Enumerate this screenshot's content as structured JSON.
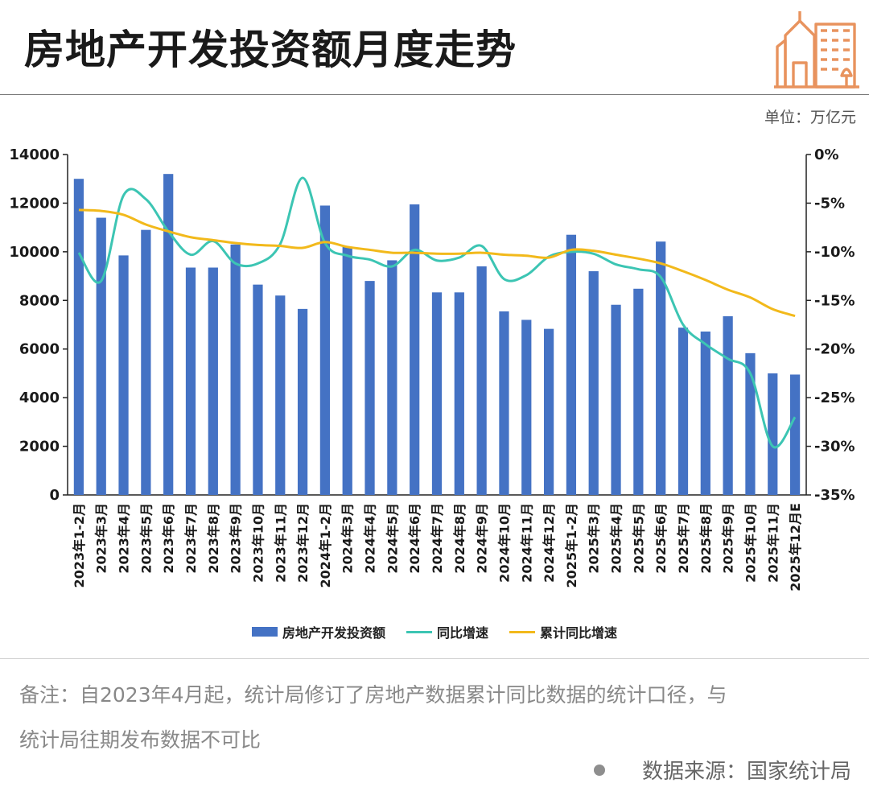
{
  "header": {
    "title": "房地产开发投资额月度走势",
    "unit": "单位：万亿元"
  },
  "logo": {
    "icon": "city-buildings-icon",
    "color": "#e8935e"
  },
  "colors": {
    "bar": "#4472c4",
    "yoy": "#3cc5b3",
    "cum": "#f2b91b",
    "axis": "#222222"
  },
  "chart_data": {
    "type": "bar",
    "title": "房地产开发投资额月度走势",
    "categories": [
      "2023年1-2月",
      "2023年3月",
      "2023年4月",
      "2023年5月",
      "2023年6月",
      "2023年7月",
      "2023年8月",
      "2023年9月",
      "2023年10月",
      "2023年11月",
      "2023年12月",
      "2024年1-2月",
      "2024年3月",
      "2024年4月",
      "2024年5月",
      "2024年6月",
      "2024年7月",
      "2024年8月",
      "2024年9月",
      "2024年10月",
      "2024年11月",
      "2024年12月",
      "2025年1-2月",
      "2025年3月",
      "2025年4月",
      "2025年5月",
      "2025年6月",
      "2025年7月",
      "2025年8月",
      "2025年9月",
      "2025年10月",
      "2025年11月",
      "2025年12月E"
    ],
    "series": [
      {
        "name": "房地产开发投资额",
        "type": "bar",
        "axis": "left",
        "values": [
          13000,
          11400,
          9850,
          10900,
          13200,
          9350,
          9350,
          10300,
          8650,
          8200,
          7650,
          11900,
          10200,
          8800,
          9650,
          11950,
          8330,
          8330,
          9400,
          7550,
          7200,
          6830,
          10700,
          9200,
          7820,
          8480,
          10420,
          6880,
          6720,
          7350,
          5830,
          5000,
          4950
        ]
      },
      {
        "name": "同比增速",
        "type": "line",
        "axis": "right",
        "values": [
          -10.1,
          -13.0,
          -4.2,
          -4.6,
          -7.9,
          -10.3,
          -8.9,
          -11.2,
          -11.2,
          -9.2,
          -2.4,
          -9.1,
          -10.4,
          -10.8,
          -11.5,
          -9.8,
          -10.9,
          -10.6,
          -9.4,
          -12.8,
          -12.4,
          -10.5,
          -10.0,
          -10.2,
          -11.3,
          -11.8,
          -12.6,
          -17.5,
          -19.5,
          -21.0,
          -22.5,
          -30.0,
          -27.0
        ]
      },
      {
        "name": "累计同比增速",
        "type": "line",
        "axis": "right",
        "values": [
          -5.7,
          -5.8,
          -6.2,
          -7.2,
          -7.9,
          -8.5,
          -8.8,
          -9.1,
          -9.3,
          -9.4,
          -9.6,
          -9.0,
          -9.5,
          -9.8,
          -10.1,
          -10.1,
          -10.2,
          -10.2,
          -10.1,
          -10.3,
          -10.4,
          -10.6,
          -9.8,
          -9.9,
          -10.3,
          -10.7,
          -11.2,
          -12.0,
          -12.9,
          -13.9,
          -14.7,
          -15.9,
          -16.6
        ]
      }
    ],
    "y_left": {
      "min": 0,
      "max": 14000,
      "ticks": [
        "0",
        "2000",
        "4000",
        "6000",
        "8000",
        "10000",
        "12000",
        "14000"
      ]
    },
    "y_right": {
      "min": -35,
      "max": 0,
      "ticks": [
        "-35%",
        "-30%",
        "-25%",
        "-20%",
        "-15%",
        "-10%",
        "-5%",
        "0%"
      ]
    },
    "legend_position": "bottom"
  },
  "legend": [
    "房地产开发投资额",
    "同比增速",
    "累计同比增速"
  ],
  "footer": {
    "note_line1": "备注：自2023年4月起，统计局修订了房地产数据累计同比数据的统计口径，与",
    "note_line2": "统计局往期发布数据不可比",
    "source": "数据来源：国家统计局"
  }
}
